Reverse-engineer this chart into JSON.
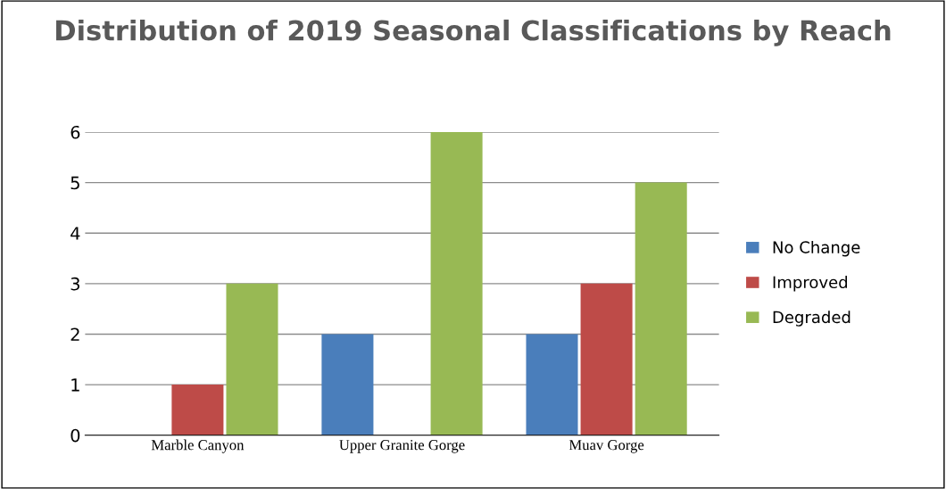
{
  "chart_data": {
    "type": "bar",
    "title": "Distribution of 2019 Seasonal Classifications by Reach",
    "categories": [
      "Marble Canyon",
      "Upper Granite Gorge",
      "Muav Gorge"
    ],
    "series": [
      {
        "name": "No Change",
        "color": "#4a7ebb",
        "values": [
          0,
          2,
          2
        ]
      },
      {
        "name": "Improved",
        "color": "#be4b48",
        "values": [
          1,
          0,
          3
        ]
      },
      {
        "name": "Degraded",
        "color": "#98b954",
        "values": [
          3,
          6,
          5
        ]
      }
    ],
    "ylim": [
      0,
      6
    ],
    "yticks": [
      0,
      1,
      2,
      3,
      4,
      5,
      6
    ],
    "grid": "y",
    "legend": "right"
  }
}
